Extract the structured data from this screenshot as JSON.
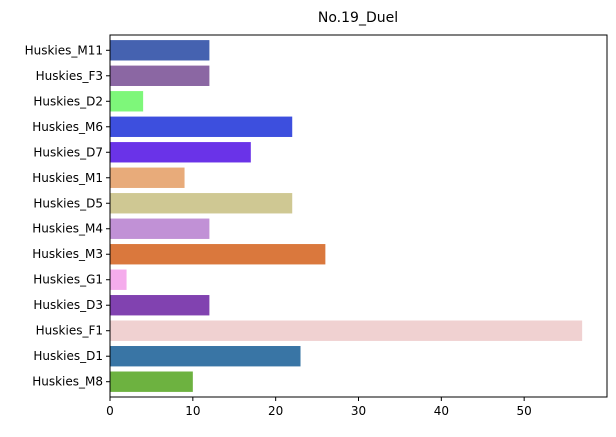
{
  "chart_data": {
    "type": "bar",
    "orientation": "horizontal",
    "title": "No.19_Duel",
    "xlabel": "",
    "ylabel": "",
    "xlim": [
      0,
      60
    ],
    "xticks": [
      0,
      10,
      20,
      30,
      40,
      50
    ],
    "grid": false,
    "categories": [
      "Huskies_M11",
      "Huskies_F3",
      "Huskies_D2",
      "Huskies_M6",
      "Huskies_D7",
      "Huskies_M1",
      "Huskies_D5",
      "Huskies_M4",
      "Huskies_M3",
      "Huskies_G1",
      "Huskies_D3",
      "Huskies_F1",
      "Huskies_D1",
      "Huskies_M8"
    ],
    "values": [
      12,
      12,
      4,
      22,
      17,
      9,
      22,
      12,
      26,
      2,
      12,
      57,
      23,
      10
    ],
    "colors": [
      "#4562b0",
      "#8b67a3",
      "#7ef77a",
      "#3d4fde",
      "#6a33e8",
      "#e8ab7a",
      "#cfc893",
      "#c191d6",
      "#da783d",
      "#f5acec",
      "#8142b0",
      "#f0d1d1",
      "#3975a5",
      "#6db240"
    ]
  }
}
